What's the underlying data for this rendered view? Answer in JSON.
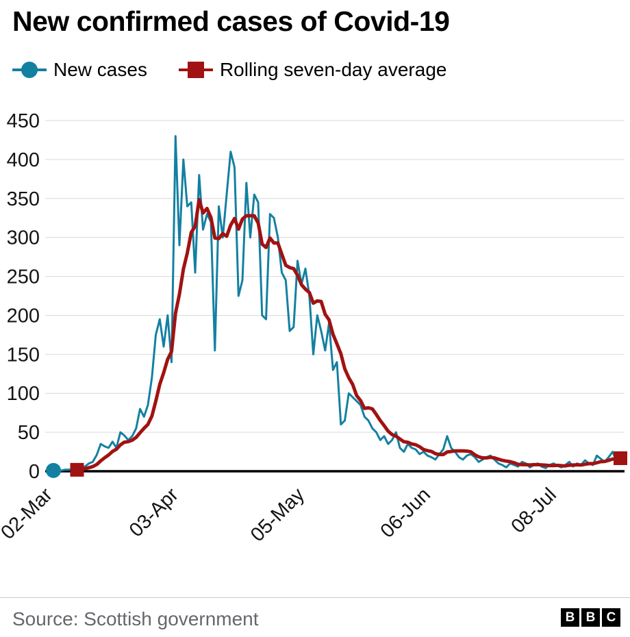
{
  "title": "New confirmed cases of Covid-19",
  "legend": [
    {
      "label": "New cases",
      "marker": "circle",
      "color": "#1380a1"
    },
    {
      "label": "Rolling seven-day average",
      "marker": "square",
      "color": "#a11212"
    }
  ],
  "footer": {
    "source": "Source: Scottish government",
    "logo_letters": [
      "B",
      "B",
      "C"
    ]
  },
  "chart_data": {
    "type": "line",
    "title": "New confirmed cases of Covid-19",
    "xlabel": "",
    "ylabel": "",
    "x_unit": "day",
    "ylim": [
      0,
      450
    ],
    "y_tick_step": 50,
    "grid": true,
    "legend_position": "top-left",
    "x_ticks": [
      {
        "index": 0,
        "label": "02-Mar"
      },
      {
        "index": 32,
        "label": "03-Apr"
      },
      {
        "index": 64,
        "label": "05-May"
      },
      {
        "index": 96,
        "label": "06-Jun"
      },
      {
        "index": 128,
        "label": "08-Jul"
      }
    ],
    "series": [
      {
        "name": "New cases",
        "color": "#1380a1",
        "marker": "circle-at-start",
        "values": [
          1,
          0,
          1,
          2,
          2,
          3,
          4,
          5,
          6,
          10,
          12,
          21,
          35,
          32,
          30,
          38,
          30,
          50,
          46,
          40,
          45,
          55,
          80,
          70,
          85,
          120,
          175,
          195,
          160,
          200,
          140,
          430,
          290,
          400,
          340,
          345,
          255,
          380,
          310,
          330,
          320,
          155,
          340,
          300,
          355,
          410,
          390,
          225,
          245,
          370,
          300,
          355,
          345,
          200,
          195,
          330,
          325,
          300,
          255,
          245,
          180,
          185,
          270,
          240,
          260,
          225,
          150,
          200,
          180,
          155,
          190,
          130,
          140,
          60,
          65,
          100,
          95,
          90,
          85,
          70,
          65,
          55,
          50,
          40,
          45,
          35,
          40,
          50,
          30,
          25,
          35,
          30,
          28,
          22,
          25,
          20,
          18,
          15,
          22,
          28,
          45,
          30,
          25,
          18,
          15,
          20,
          22,
          18,
          12,
          15,
          18,
          20,
          15,
          10,
          8,
          5,
          10,
          8,
          6,
          12,
          10,
          5,
          8,
          10,
          6,
          4,
          8,
          10,
          7,
          5,
          8,
          12,
          6,
          10,
          8,
          14,
          10,
          8,
          20,
          16,
          12,
          18,
          25,
          14,
          12
        ]
      },
      {
        "name": "Rolling seven-day average",
        "color": "#a11212",
        "marker": "square-at-ends",
        "derived": "7-day rolling mean of the New cases series"
      }
    ]
  }
}
